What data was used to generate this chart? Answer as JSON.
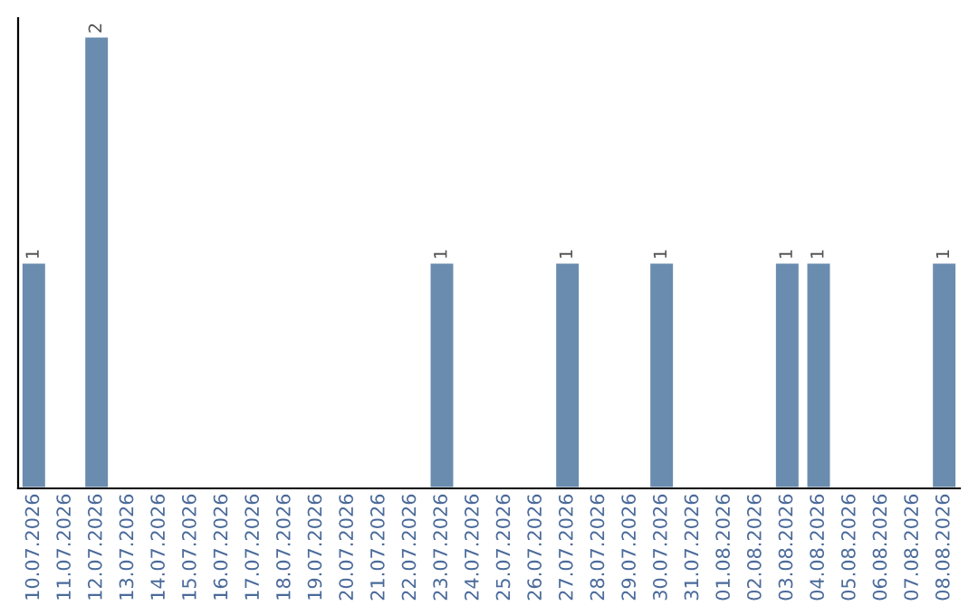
{
  "chart_data": {
    "type": "bar",
    "categories": [
      "10.07.2026",
      "11.07.2026",
      "12.07.2026",
      "13.07.2026",
      "14.07.2026",
      "15.07.2026",
      "16.07.2026",
      "17.07.2026",
      "18.07.2026",
      "19.07.2026",
      "20.07.2026",
      "21.07.2026",
      "22.07.2026",
      "23.07.2026",
      "24.07.2026",
      "25.07.2026",
      "26.07.2026",
      "27.07.2026",
      "28.07.2026",
      "29.07.2026",
      "30.07.2026",
      "31.07.2026",
      "01.08.2026",
      "02.08.2026",
      "03.08.2026",
      "04.08.2026",
      "05.08.2026",
      "06.08.2026",
      "07.08.2026",
      "08.08.2026"
    ],
    "values": [
      1,
      null,
      2,
      null,
      null,
      null,
      null,
      null,
      null,
      null,
      null,
      null,
      null,
      1,
      null,
      null,
      null,
      1,
      null,
      null,
      1,
      null,
      null,
      null,
      1,
      1,
      null,
      null,
      null,
      1
    ],
    "value_labels": [
      "1",
      null,
      "2",
      null,
      null,
      null,
      null,
      null,
      null,
      null,
      null,
      null,
      null,
      "1",
      null,
      null,
      null,
      "1",
      null,
      null,
      "1",
      null,
      null,
      null,
      "1",
      "1",
      null,
      null,
      null,
      "1"
    ],
    "color": "#6a8caf",
    "ylim": [
      0,
      2.08
    ],
    "tick_labels": "x",
    "grid": false,
    "legend": false
  }
}
